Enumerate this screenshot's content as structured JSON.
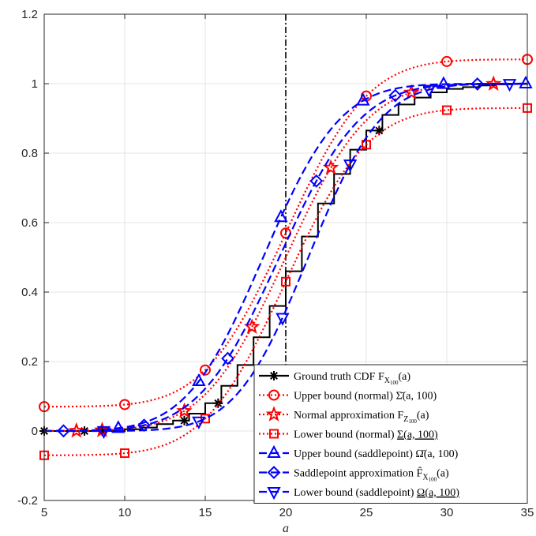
{
  "chart_data": {
    "type": "line",
    "xlabel": "a",
    "ylabel": "",
    "xlim": [
      5,
      35
    ],
    "ylim": [
      -0.2,
      1.2
    ],
    "xticks": [
      5,
      10,
      15,
      20,
      25,
      30,
      35
    ],
    "yticks": [
      -0.2,
      0,
      0.2,
      0.4,
      0.6,
      0.8,
      1,
      1.2
    ],
    "ytick_labels": [
      "-0.2",
      "0",
      "0.2",
      "0.4",
      "0.6",
      "0.8",
      "1",
      "1.2"
    ],
    "grid": true,
    "vline_x": 20,
    "legend_position": "bottom-right",
    "colors": {
      "black": "#000000",
      "red": "#ff0000",
      "blue": "#0000ff"
    },
    "series": [
      {
        "name": "Ground truth CDF F_X100(a)",
        "label": "Ground truth CDF F",
        "label_sub": "X",
        "label_subsub": "100",
        "label_tail": "(a)",
        "color": "#000000",
        "style": "solid-step",
        "marker": "asterisk",
        "marker_x": [
          5,
          7.5,
          8.6,
          13.7,
          15.8,
          25.8
        ],
        "x": [
          10,
          11,
          12,
          13,
          14,
          15,
          16,
          17,
          18,
          19,
          20,
          21,
          22,
          23,
          24,
          25,
          26,
          27,
          28,
          29,
          30,
          31,
          32,
          33,
          34,
          35
        ],
        "y": [
          0.005,
          0.01,
          0.02,
          0.03,
          0.05,
          0.08,
          0.13,
          0.19,
          0.27,
          0.36,
          0.46,
          0.56,
          0.655,
          0.74,
          0.81,
          0.865,
          0.91,
          0.94,
          0.96,
          0.975,
          0.985,
          0.99,
          0.995,
          0.998,
          0.999,
          1.0
        ]
      },
      {
        "name": "Upper bound (normal) Σ̄(a,100)",
        "label": "Upper bound (normal) ",
        "label_math": "Σ̄(a, 100)",
        "color": "#ff0000",
        "style": "dotted",
        "marker": "circle",
        "kind": "upper_normal",
        "marker_x": [
          5,
          10,
          15,
          20,
          25,
          30,
          35
        ]
      },
      {
        "name": "Normal approximation F_Z100(a)",
        "label": "Normal approximation F",
        "label_sub": "Z",
        "label_subsub": "100",
        "label_tail": "(a)",
        "color": "#ff0000",
        "style": "dotted",
        "marker": "star",
        "kind": "normal",
        "marker_x": [
          7,
          8.6,
          13.7,
          17.9,
          22.8,
          27.8,
          32.9
        ]
      },
      {
        "name": "Lower bound (normal) Σ(a,100)",
        "label": "Lower bound (normal) ",
        "label_math": "Σ(a, 100)",
        "label_underline": true,
        "color": "#ff0000",
        "style": "dotted",
        "marker": "square",
        "kind": "lower_normal",
        "marker_x": [
          5,
          10,
          15,
          20,
          25,
          30,
          35
        ]
      },
      {
        "name": "Upper bound (saddlepoint) Ω̄(a,100)",
        "label": "Upper bound (saddlepoint) ",
        "label_math": "Ω̄(a, 100)",
        "color": "#0000ff",
        "style": "dashed",
        "marker": "triangle-up",
        "kind": "upper_saddle",
        "marker_x": [
          9.6,
          14.6,
          19.7,
          24.8,
          29.8,
          34.9
        ]
      },
      {
        "name": "Saddlepoint approximation F̂_X100(a)",
        "label": "Saddlepoint approximation ",
        "label_math": "F̂",
        "label_sub": "X",
        "label_subsub": "100",
        "label_tail": "(a)",
        "color": "#0000ff",
        "style": "dashed",
        "marker": "diamond",
        "kind": "saddle",
        "marker_x": [
          6.2,
          11.2,
          16.4,
          21.9,
          26.8,
          31.9
        ]
      },
      {
        "name": "Lower bound (saddlepoint) Ω(a,100)",
        "label": "Lower bound (saddlepoint) ",
        "label_math": "Ω(a, 100)",
        "label_underline": true,
        "color": "#0000ff",
        "style": "dashed",
        "marker": "triangle-down",
        "kind": "lower_saddle",
        "marker_x": [
          8.7,
          14.6,
          19.8,
          24.0,
          28.9,
          33.9
        ]
      }
    ]
  }
}
